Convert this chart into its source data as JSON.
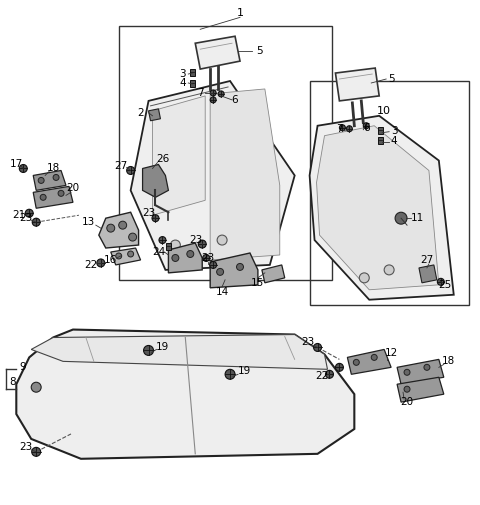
{
  "background_color": "#ffffff",
  "figsize": [
    4.8,
    5.05
  ],
  "dpi": 100,
  "line_color": "#222222",
  "fill_light": "#f0f0f0",
  "fill_mid": "#e0e0e0",
  "fill_dark": "#c8c8c8"
}
